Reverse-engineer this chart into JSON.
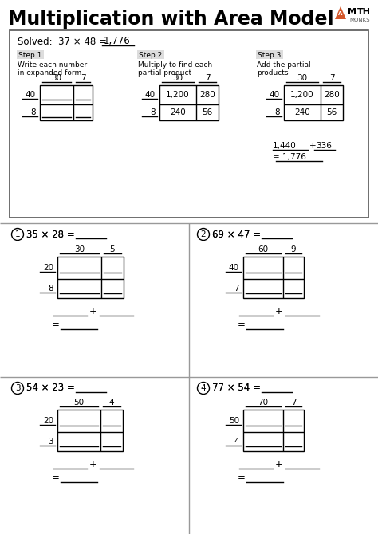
{
  "title": "Multiplication with Area Model",
  "bg_color": "#ffffff",
  "solved_label": "Solved:  37 × 48 = ",
  "solved_answer": "1,776",
  "step1_title": "Step 1",
  "step2_title": "Step 2",
  "step3_title": "Step 3",
  "step1_desc1": "Write each number",
  "step1_desc2": "in expanded form",
  "step2_desc1": "Multiply to find each",
  "step2_desc2": "partial product",
  "step3_desc1": "Add the partial",
  "step3_desc2": "products",
  "example_cols": [
    "30",
    "7"
  ],
  "example_rows": [
    "40",
    "8"
  ],
  "step2_values": [
    [
      "1,200",
      "280"
    ],
    [
      "240",
      "56"
    ]
  ],
  "step3_values": [
    [
      "1,200",
      "280"
    ],
    [
      "240",
      "56"
    ]
  ],
  "step3_sum1": "1,440",
  "step3_plus": "+",
  "step3_sum2": "336",
  "step3_total": "= 1,776",
  "logo_triangle_color": "#d4572a",
  "logo_text_color": "#000000",
  "logo_monks_color": "#555555",
  "divider_color": "#999999",
  "step_bg_color": "#dddddd",
  "box_color": "#555555",
  "problems": [
    {
      "num": "1",
      "expr": "35 × 28 = ",
      "cols": [
        "30",
        "5"
      ],
      "rows": [
        "20",
        "8"
      ]
    },
    {
      "num": "2",
      "expr": "69 × 47 = ",
      "cols": [
        "60",
        "9"
      ],
      "rows": [
        "40",
        "7"
      ]
    },
    {
      "num": "3",
      "expr": "54 × 23 = ",
      "cols": [
        "50",
        "4"
      ],
      "rows": [
        "20",
        "3"
      ]
    },
    {
      "num": "4",
      "expr": "77 × 54 = ",
      "cols": [
        "70",
        "7"
      ],
      "rows": [
        "50",
        "4"
      ]
    }
  ]
}
